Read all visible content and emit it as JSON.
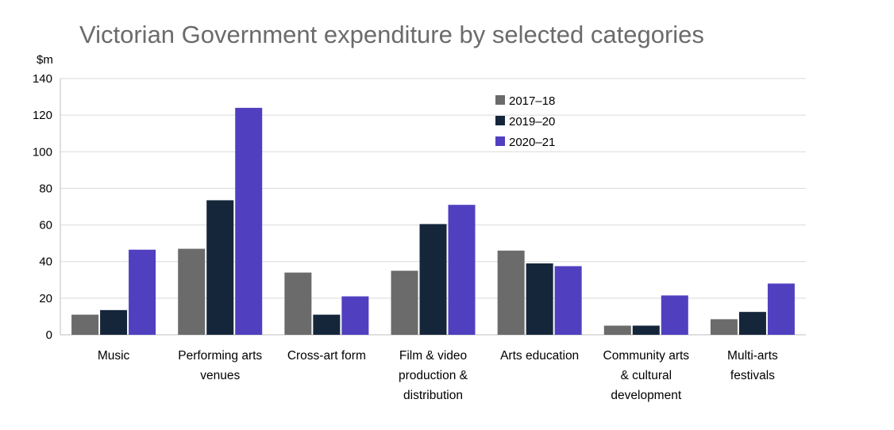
{
  "chart_data": {
    "type": "bar",
    "title": "Victorian Government expenditure by selected categories",
    "ylabel": "$m",
    "xlabel": "",
    "ylim": [
      0,
      140
    ],
    "yticks": [
      0,
      20,
      40,
      60,
      80,
      100,
      120,
      140
    ],
    "grid": true,
    "legend_position": "top-right",
    "categories": [
      [
        "Music"
      ],
      [
        "Performing arts",
        "venues"
      ],
      [
        "Cross-art form"
      ],
      [
        "Film & video",
        "production &",
        "distribution"
      ],
      [
        "Arts education"
      ],
      [
        "Community arts",
        "& cultural",
        "development"
      ],
      [
        "Multi-arts",
        "festivals"
      ]
    ],
    "series": [
      {
        "name": "2017–18",
        "color": "#6b6b6b",
        "values": [
          11,
          47,
          34,
          35,
          46,
          5,
          8.5
        ]
      },
      {
        "name": "2019–20",
        "color": "#15263a",
        "values": [
          13.5,
          73.5,
          11,
          60.5,
          39,
          5,
          12.5
        ]
      },
      {
        "name": "2020–21",
        "color": "#5040c0",
        "values": [
          46.5,
          124,
          21,
          71,
          37.5,
          21.5,
          28
        ]
      }
    ]
  }
}
